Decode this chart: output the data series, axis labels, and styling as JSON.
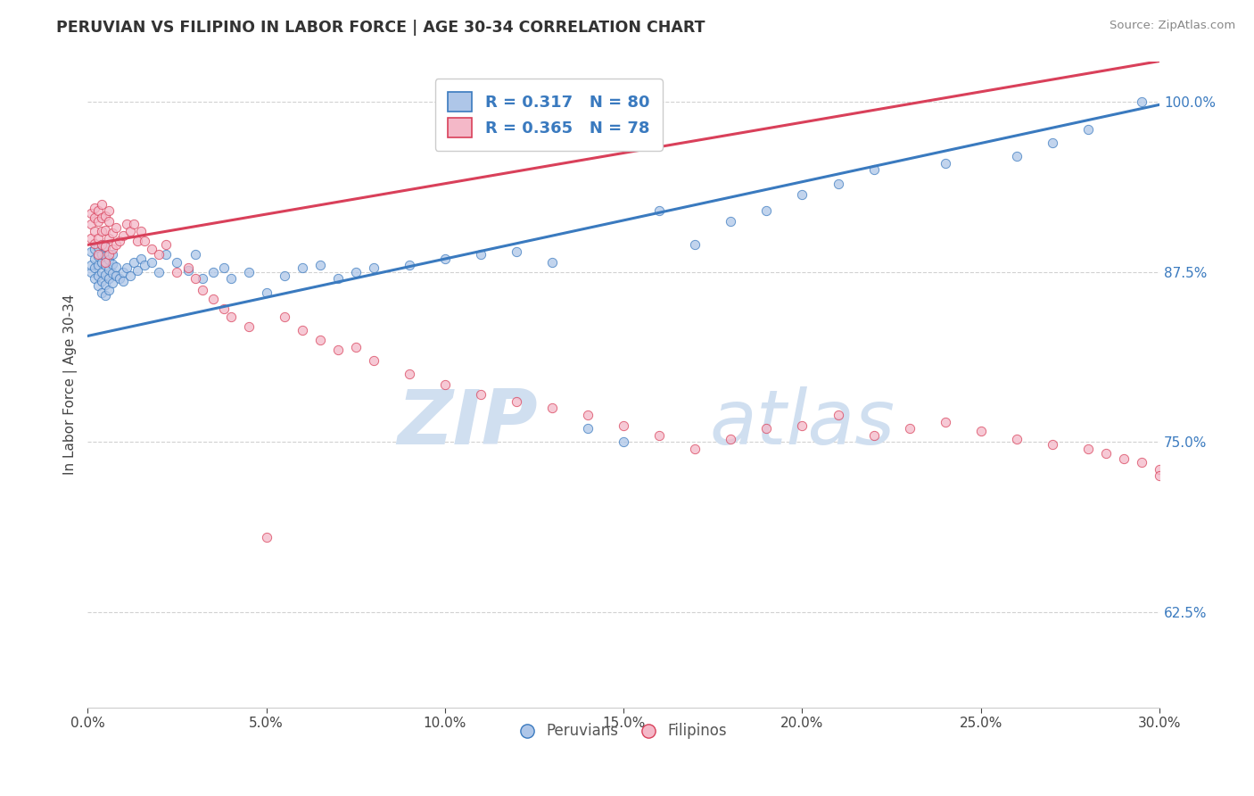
{
  "title": "PERUVIAN VS FILIPINO IN LABOR FORCE | AGE 30-34 CORRELATION CHART",
  "source": "Source: ZipAtlas.com",
  "xlabel": "",
  "ylabel": "In Labor Force | Age 30-34",
  "xlim": [
    0.0,
    0.3
  ],
  "ylim": [
    0.555,
    1.03
  ],
  "xtick_labels": [
    "0.0%",
    "5.0%",
    "10.0%",
    "15.0%",
    "20.0%",
    "25.0%",
    "30.0%"
  ],
  "xtick_vals": [
    0.0,
    0.05,
    0.1,
    0.15,
    0.2,
    0.25,
    0.3
  ],
  "ytick_labels": [
    "62.5%",
    "75.0%",
    "87.5%",
    "100.0%"
  ],
  "ytick_vals": [
    0.625,
    0.75,
    0.875,
    1.0
  ],
  "blue_R": 0.317,
  "blue_N": 80,
  "pink_R": 0.365,
  "pink_N": 78,
  "blue_color": "#aec6e8",
  "pink_color": "#f4b8c8",
  "blue_line_color": "#3a7abf",
  "pink_line_color": "#d9405a",
  "watermark_text": "ZIP",
  "watermark_text2": "atlas",
  "watermark_color": "#d0dff0",
  "legend_label_peruvians": "Peruvians",
  "legend_label_filipinos": "Filipinos",
  "blue_trend_x": [
    0.0,
    0.3
  ],
  "blue_trend_y": [
    0.828,
    0.998
  ],
  "pink_trend_x": [
    0.0,
    0.3
  ],
  "pink_trend_y": [
    0.895,
    1.03
  ],
  "blue_scatter_x": [
    0.001,
    0.001,
    0.001,
    0.002,
    0.002,
    0.002,
    0.002,
    0.003,
    0.003,
    0.003,
    0.003,
    0.003,
    0.004,
    0.004,
    0.004,
    0.004,
    0.004,
    0.004,
    0.005,
    0.005,
    0.005,
    0.005,
    0.005,
    0.005,
    0.006,
    0.006,
    0.006,
    0.006,
    0.007,
    0.007,
    0.007,
    0.007,
    0.008,
    0.008,
    0.009,
    0.01,
    0.01,
    0.011,
    0.012,
    0.013,
    0.014,
    0.015,
    0.016,
    0.018,
    0.02,
    0.022,
    0.025,
    0.028,
    0.03,
    0.032,
    0.035,
    0.038,
    0.04,
    0.045,
    0.05,
    0.055,
    0.06,
    0.065,
    0.07,
    0.075,
    0.08,
    0.09,
    0.1,
    0.11,
    0.12,
    0.13,
    0.14,
    0.15,
    0.16,
    0.17,
    0.18,
    0.19,
    0.2,
    0.21,
    0.22,
    0.24,
    0.26,
    0.27,
    0.28,
    0.295
  ],
  "blue_scatter_y": [
    0.875,
    0.88,
    0.89,
    0.87,
    0.878,
    0.885,
    0.892,
    0.865,
    0.872,
    0.88,
    0.887,
    0.893,
    0.86,
    0.868,
    0.875,
    0.882,
    0.888,
    0.895,
    0.858,
    0.866,
    0.873,
    0.88,
    0.887,
    0.893,
    0.862,
    0.87,
    0.877,
    0.884,
    0.867,
    0.874,
    0.881,
    0.888,
    0.872,
    0.879,
    0.87,
    0.868,
    0.875,
    0.878,
    0.872,
    0.882,
    0.876,
    0.885,
    0.88,
    0.882,
    0.875,
    0.888,
    0.882,
    0.876,
    0.888,
    0.87,
    0.875,
    0.878,
    0.87,
    0.875,
    0.86,
    0.872,
    0.878,
    0.88,
    0.87,
    0.875,
    0.878,
    0.88,
    0.885,
    0.888,
    0.89,
    0.882,
    0.76,
    0.75,
    0.92,
    0.895,
    0.912,
    0.92,
    0.932,
    0.94,
    0.95,
    0.955,
    0.96,
    0.97,
    0.98,
    1.0
  ],
  "pink_scatter_x": [
    0.001,
    0.001,
    0.001,
    0.002,
    0.002,
    0.002,
    0.002,
    0.003,
    0.003,
    0.003,
    0.003,
    0.004,
    0.004,
    0.004,
    0.004,
    0.005,
    0.005,
    0.005,
    0.005,
    0.006,
    0.006,
    0.006,
    0.006,
    0.007,
    0.007,
    0.008,
    0.008,
    0.009,
    0.01,
    0.011,
    0.012,
    0.013,
    0.014,
    0.015,
    0.016,
    0.018,
    0.02,
    0.022,
    0.025,
    0.028,
    0.03,
    0.032,
    0.035,
    0.038,
    0.04,
    0.045,
    0.05,
    0.055,
    0.06,
    0.065,
    0.07,
    0.075,
    0.08,
    0.09,
    0.1,
    0.11,
    0.12,
    0.13,
    0.14,
    0.15,
    0.16,
    0.17,
    0.18,
    0.19,
    0.2,
    0.21,
    0.22,
    0.23,
    0.24,
    0.25,
    0.26,
    0.27,
    0.28,
    0.285,
    0.29,
    0.295,
    0.3,
    0.3
  ],
  "pink_scatter_y": [
    0.91,
    0.9,
    0.918,
    0.905,
    0.896,
    0.915,
    0.922,
    0.888,
    0.9,
    0.912,
    0.92,
    0.895,
    0.905,
    0.915,
    0.925,
    0.882,
    0.894,
    0.906,
    0.916,
    0.888,
    0.9,
    0.912,
    0.92,
    0.892,
    0.904,
    0.895,
    0.908,
    0.898,
    0.902,
    0.91,
    0.905,
    0.91,
    0.898,
    0.905,
    0.898,
    0.892,
    0.888,
    0.895,
    0.875,
    0.878,
    0.87,
    0.862,
    0.855,
    0.848,
    0.842,
    0.835,
    0.68,
    0.842,
    0.832,
    0.825,
    0.818,
    0.82,
    0.81,
    0.8,
    0.792,
    0.785,
    0.78,
    0.775,
    0.77,
    0.762,
    0.755,
    0.745,
    0.752,
    0.76,
    0.762,
    0.77,
    0.755,
    0.76,
    0.765,
    0.758,
    0.752,
    0.748,
    0.745,
    0.742,
    0.738,
    0.735,
    0.73,
    0.725
  ]
}
